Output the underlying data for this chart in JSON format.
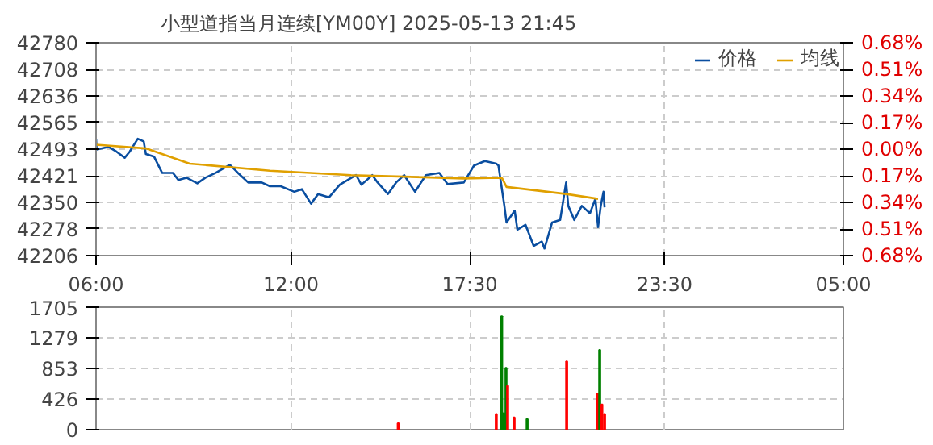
{
  "chart_data": [
    {
      "type": "line",
      "title": "小型道指当月连续[YM00Y] 2025-05-13 21:45",
      "legend": "top right",
      "grid": true,
      "xlim": [
        "2025-05-13T06:00",
        "2025-05-14T05:00"
      ],
      "xticks": [
        {
          "value": "2025-05-13T06:00",
          "label": "06:00"
        },
        {
          "value": "2025-05-13T12:00",
          "label": "12:00"
        },
        {
          "value": "2025-05-13T17:30",
          "label": "17:30"
        },
        {
          "value": "2025-05-13T23:30",
          "label": "23:30"
        },
        {
          "value": "2025-05-14T05:00",
          "label": "05:00"
        }
      ],
      "ylim": [
        42206,
        42780
      ],
      "yticks": [
        42206,
        42278,
        42350,
        42421,
        42493,
        42565,
        42636,
        42708,
        42780
      ],
      "y2lim": [
        -0.68,
        0.68
      ],
      "y2ticks": [
        {
          "value": -0.68,
          "label": "0.68%"
        },
        {
          "value": -0.51,
          "label": "0.51%"
        },
        {
          "value": -0.34,
          "label": "0.34%"
        },
        {
          "value": -0.17,
          "label": "0.17%"
        },
        {
          "value": 0,
          "label": "0.00%"
        },
        {
          "value": 0.17,
          "label": "0.17%"
        },
        {
          "value": 0.34,
          "label": "0.34%"
        },
        {
          "value": 0.51,
          "label": "0.51%"
        },
        {
          "value": 0.68,
          "label": "0.68%"
        }
      ],
      "series": [
        {
          "name": "价格",
          "color": "#0a4ea0",
          "x": [
            "2025-05-13T06:00",
            "2025-05-13T06:01",
            "2025-05-13T06:23",
            "2025-05-13T06:38",
            "2025-05-13T06:53",
            "2025-05-13T07:02",
            "2025-05-13T07:17",
            "2025-05-13T07:28",
            "2025-05-13T07:32",
            "2025-05-13T07:47",
            "2025-05-13T08:02",
            "2025-05-13T08:22",
            "2025-05-13T08:32",
            "2025-05-13T08:47",
            "2025-05-13T09:07",
            "2025-05-13T09:22",
            "2025-05-13T09:41",
            "2025-05-13T10:07",
            "2025-05-13T10:22",
            "2025-05-13T10:41",
            "2025-05-13T11:06",
            "2025-05-13T11:21",
            "2025-05-13T11:41",
            "2025-05-13T12:06",
            "2025-05-13T12:20",
            "2025-05-13T12:37",
            "2025-05-13T12:50",
            "2025-05-13T13:10",
            "2025-05-13T13:30",
            "2025-05-13T14:00",
            "2025-05-13T14:10",
            "2025-05-13T14:30",
            "2025-05-13T14:40",
            "2025-05-13T14:59",
            "2025-05-13T15:14",
            "2025-05-13T15:29",
            "2025-05-13T15:49",
            "2025-05-13T16:09",
            "2025-05-13T16:34",
            "2025-05-13T16:49",
            "2025-05-13T17:19",
            "2025-05-13T17:38",
            "2025-05-13T17:58",
            "2025-05-13T18:19",
            "2025-05-13T18:23",
            "2025-05-13T18:34",
            "2025-05-13T18:38",
            "2025-05-13T18:53",
            "2025-05-13T18:58",
            "2025-05-13T19:13",
            "2025-05-13T19:28",
            "2025-05-13T19:43",
            "2025-05-13T19:48",
            "2025-05-13T20:02",
            "2025-05-13T20:17",
            "2025-05-13T20:28",
            "2025-05-13T20:32",
            "2025-05-13T20:43",
            "2025-05-13T20:57",
            "2025-05-13T21:12",
            "2025-05-13T21:22",
            "2025-05-13T21:27",
            "2025-05-13T21:32",
            "2025-05-13T21:37",
            "2025-05-13T21:39"
          ],
          "values": [
            42521,
            42492,
            42499,
            42486,
            42470,
            42486,
            42521,
            42514,
            42480,
            42473,
            42429,
            42429,
            42410,
            42416,
            42401,
            42416,
            42429,
            42451,
            42429,
            42403,
            42403,
            42393,
            42393,
            42378,
            42385,
            42346,
            42372,
            42363,
            42397,
            42423,
            42397,
            42423,
            42403,
            42372,
            42403,
            42423,
            42378,
            42423,
            42429,
            42399,
            42403,
            42449,
            42461,
            42454,
            42449,
            42340,
            42295,
            42327,
            42276,
            42289,
            42232,
            42244,
            42225,
            42295,
            42302,
            42403,
            42340,
            42302,
            42340,
            42320,
            42359,
            42283,
            42340,
            42378,
            42336
          ]
        },
        {
          "name": "均线",
          "color": "#e0a000",
          "x": [
            "2025-05-13T06:00",
            "2025-05-13T07:32",
            "2025-05-13T08:53",
            "2025-05-13T11:21",
            "2025-05-13T13:51",
            "2025-05-13T17:19",
            "2025-05-13T18:23",
            "2025-05-13T18:30",
            "2025-05-13T18:38",
            "2025-05-13T20:28",
            "2025-05-13T21:27"
          ],
          "values": [
            42505,
            42495,
            42454,
            42435,
            42423,
            42414,
            42416,
            42414,
            42391,
            42372,
            42359
          ]
        }
      ]
    },
    {
      "type": "bar",
      "grid": true,
      "tick_labels": "y",
      "xlim": [
        "2025-05-13T06:00",
        "2025-05-14T05:00"
      ],
      "xticks": [
        {
          "value": "2025-05-13T06:00",
          "label": null
        },
        {
          "value": "2025-05-13T12:00",
          "label": null
        },
        {
          "value": "2025-05-13T17:30",
          "label": null
        },
        {
          "value": "2025-05-13T23:30",
          "label": null
        },
        {
          "value": "2025-05-14T05:00",
          "label": null
        }
      ],
      "ylim": [
        0,
        1705
      ],
      "yticks": [
        0,
        426,
        853,
        1279,
        1705
      ],
      "x": [
        "2025-05-13T15:18",
        "2025-05-13T18:19",
        "2025-05-13T18:29",
        "2025-05-13T18:33",
        "2025-05-13T18:37",
        "2025-05-13T18:40",
        "2025-05-13T18:52",
        "2025-05-13T19:16",
        "2025-05-13T20:29",
        "2025-05-13T21:26",
        "2025-05-13T21:30",
        "2025-05-13T21:34",
        "2025-05-13T21:39"
      ],
      "values": [
        90,
        220,
        1580,
        230,
        860,
        610,
        170,
        150,
        950,
        500,
        1110,
        350,
        220
      ],
      "colors": [
        "#ff0000",
        "#ff0000",
        "#008000",
        "#008000",
        "#008000",
        "#ff0000",
        "#ff0000",
        "#008000",
        "#ff0000",
        "#ff0000",
        "#008000",
        "#ff0000",
        "#ff0000"
      ]
    }
  ]
}
